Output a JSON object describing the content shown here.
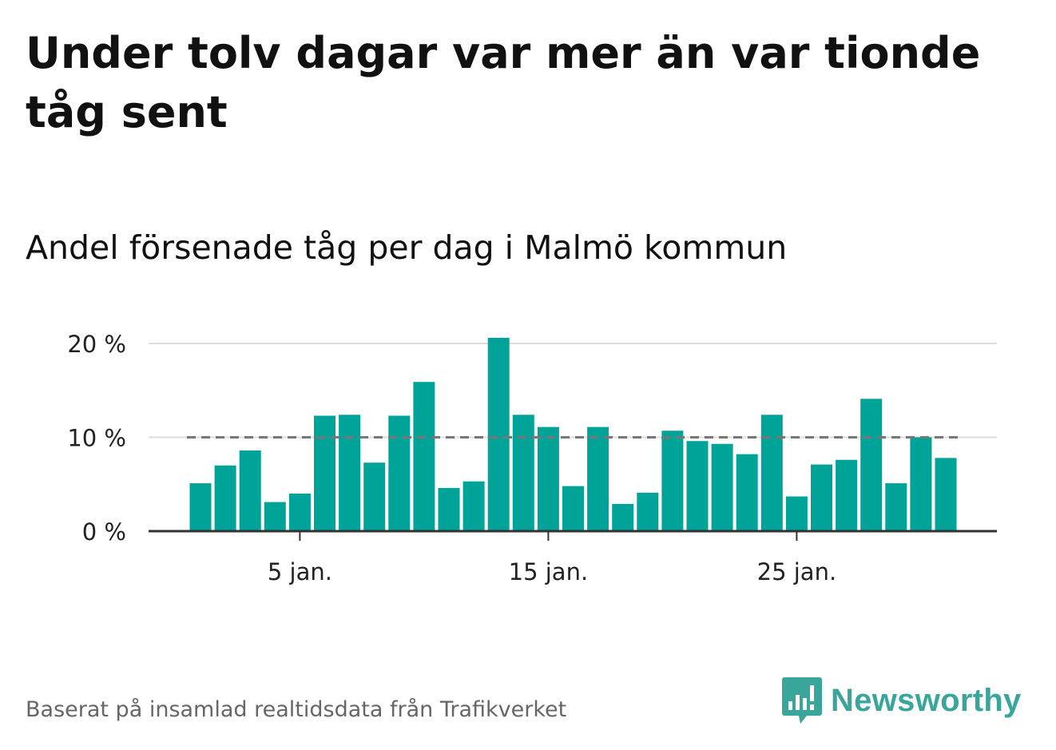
{
  "title": "Under tolv dagar var mer än var tionde tåg sent",
  "subtitle": "Andel försenade tåg per dag i Malmö kommun",
  "source": "Baserat på insamlad realtidsdata från Trafikverket",
  "brand": {
    "name": "Newsworthy",
    "color": "#3aa59a",
    "icon": "newsworthy-logo-icon"
  },
  "colors": {
    "bar": "#00a398",
    "reference_line": "#777777",
    "gridline": "#dddddd",
    "axis": "#333333"
  },
  "chart_data": {
    "type": "bar",
    "x": [
      1,
      2,
      3,
      4,
      5,
      6,
      7,
      8,
      9,
      10,
      11,
      12,
      13,
      14,
      15,
      16,
      17,
      18,
      19,
      20,
      21,
      22,
      23,
      24,
      25,
      26,
      27,
      28,
      29,
      30,
      31
    ],
    "values": [
      5.1,
      7.0,
      8.6,
      3.1,
      4.0,
      12.3,
      12.4,
      7.3,
      12.3,
      15.9,
      4.6,
      5.3,
      20.6,
      12.4,
      11.1,
      4.8,
      11.1,
      2.9,
      4.1,
      10.7,
      9.6,
      9.3,
      8.2,
      12.4,
      3.7,
      7.1,
      7.6,
      14.1,
      5.1,
      10.0,
      7.8
    ],
    "xticks": [
      5,
      15,
      25
    ],
    "xtick_labels": [
      "5 jan.",
      "15 jan.",
      "25 jan."
    ],
    "yticks": [
      0,
      10,
      20
    ],
    "ytick_labels": [
      "0 %",
      "10 %",
      "20 %"
    ],
    "ylim": [
      0,
      20
    ],
    "reference_line": 10,
    "grid": true,
    "xlabel": "",
    "ylabel": ""
  }
}
